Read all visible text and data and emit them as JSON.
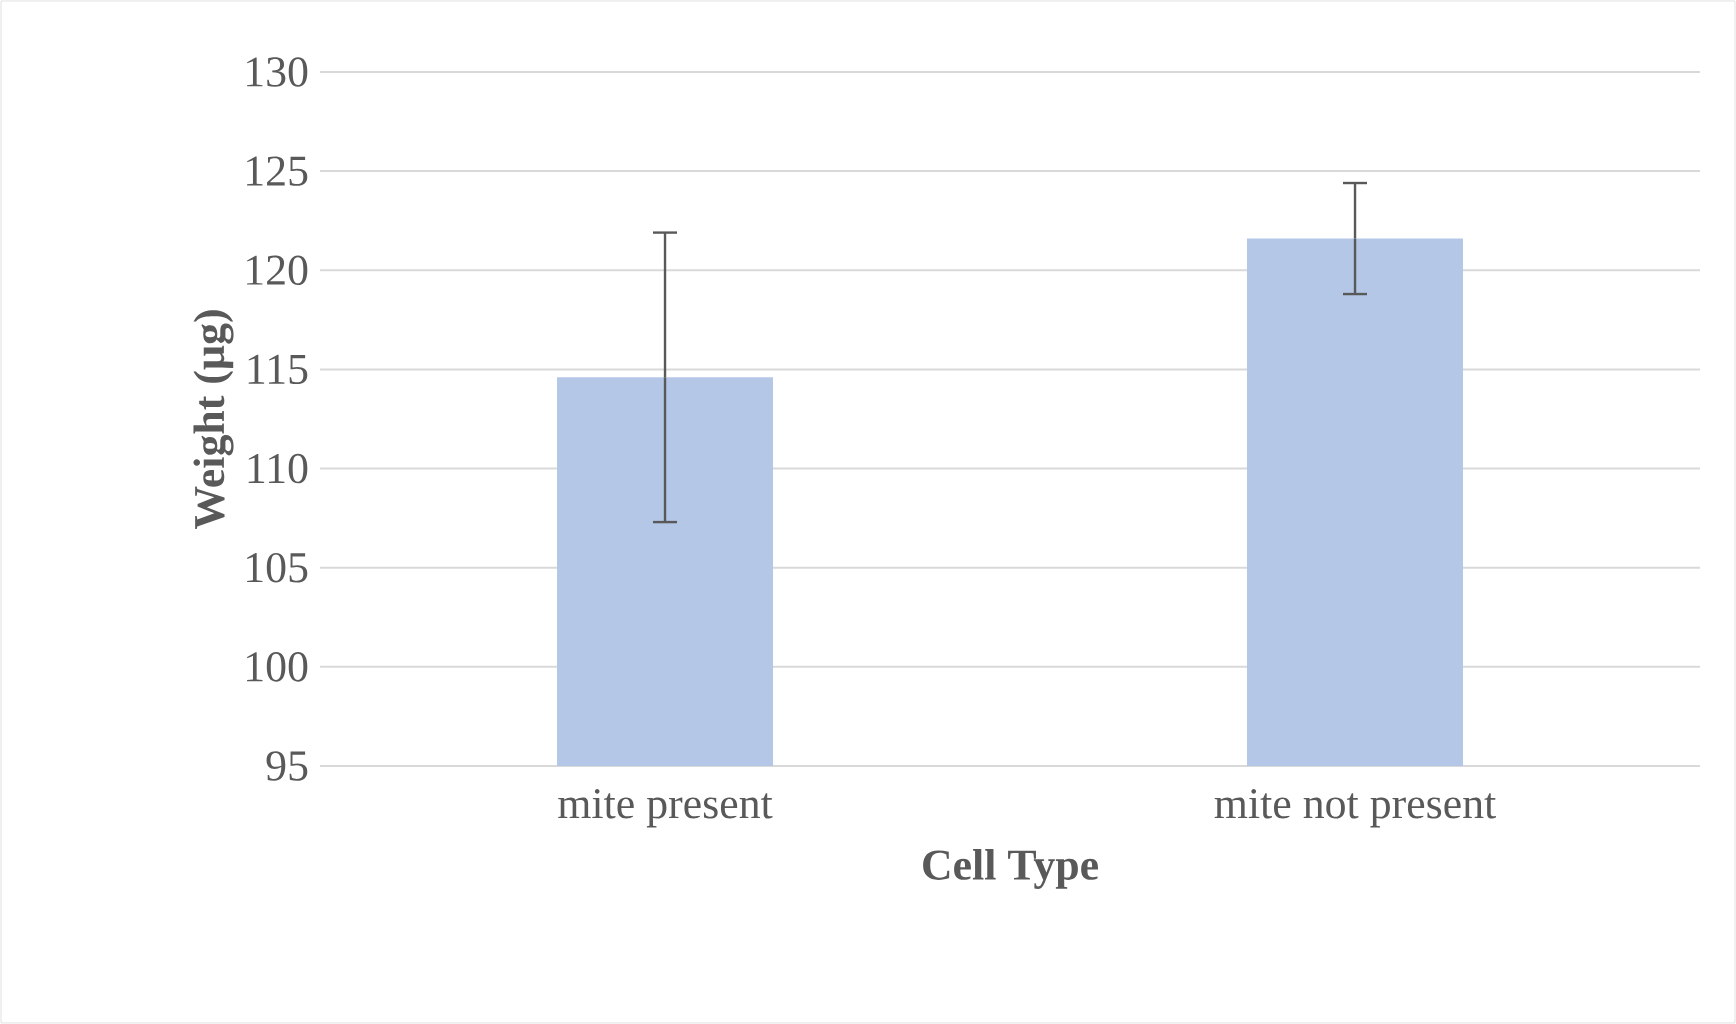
{
  "chart_data": {
    "type": "bar",
    "xlabel": "Cell Type",
    "ylabel": "Weight (µg)",
    "categories": [
      "mite present",
      "mite not present"
    ],
    "values": [
      114.6,
      121.6
    ],
    "errors": [
      7.3,
      2.8
    ],
    "color": "#b4c7e7",
    "ylim": [
      95,
      130
    ],
    "yticks": [
      95,
      100,
      105,
      110,
      115,
      120,
      125,
      130
    ],
    "grid": "y"
  }
}
